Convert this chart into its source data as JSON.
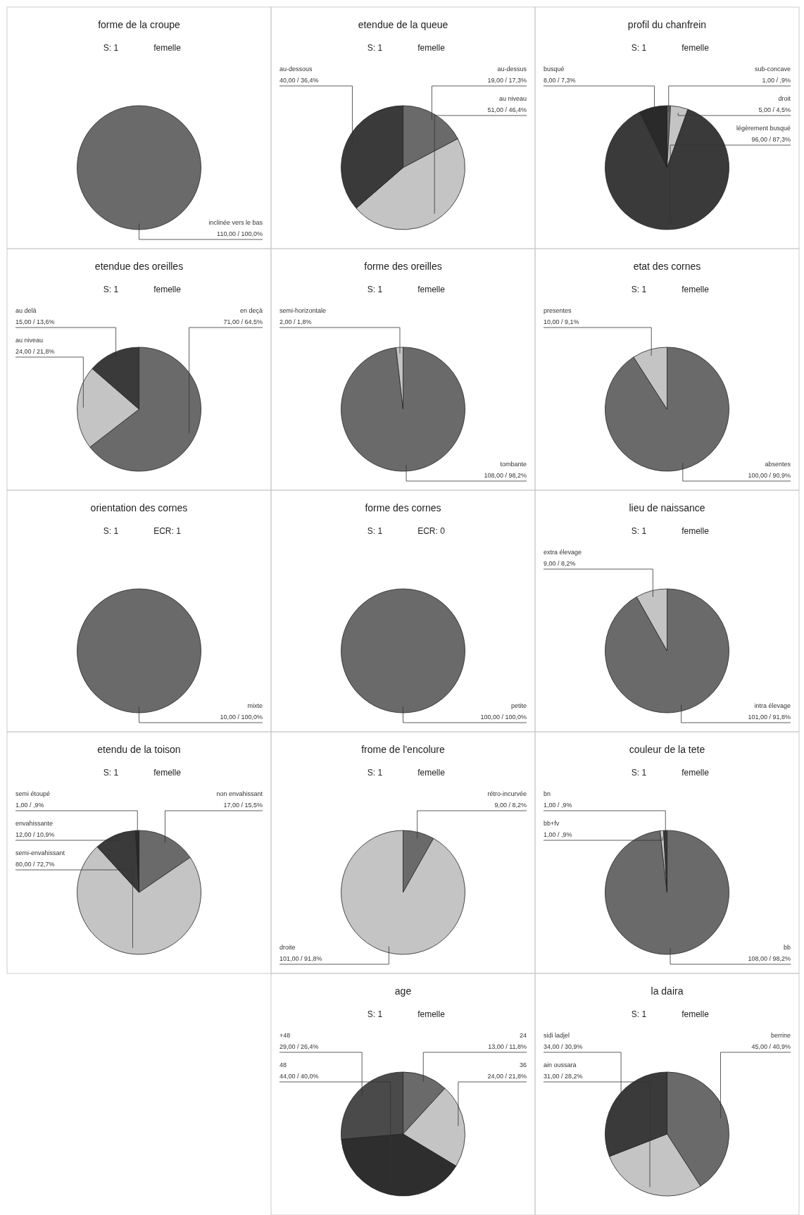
{
  "chart_data": [
    {
      "type": "pie",
      "title": "forme de la croupe",
      "subtitle": "S: 1",
      "annotations": [
        "femelle"
      ],
      "categories": [
        "inclinée vers le bas"
      ],
      "values": [
        110
      ],
      "colors": [
        "#6a6a6a"
      ],
      "value_labels": [
        "110,00 / 100,0%"
      ]
    },
    {
      "type": "pie",
      "title": "etendue de la queue",
      "subtitle": "S: 1",
      "annotations": [
        "femelle"
      ],
      "categories": [
        "au-dessus",
        "au niveau",
        "au-dessous"
      ],
      "values": [
        19,
        51,
        40
      ],
      "colors": [
        "#6a6a6a",
        "#c4c4c4",
        "#3a3a3a"
      ],
      "value_labels": [
        "19,00 / 17,3%",
        "51,00 / 46,4%",
        "40,00 / 36,4%"
      ]
    },
    {
      "type": "pie",
      "title": "profil du chanfrein",
      "subtitle": "S: 1",
      "annotations": [
        "femelle"
      ],
      "categories": [
        "sub-concave",
        "droit",
        "légèrement busqué",
        "busqué"
      ],
      "values": [
        1,
        5,
        96,
        8
      ],
      "colors": [
        "#6a6a6a",
        "#c4c4c4",
        "#3a3a3a",
        "#2a2a2a"
      ],
      "value_labels": [
        "1,00 / ,9%",
        "5,00 / 4,5%",
        "96,00 / 87,3%",
        "8,00 / 7,3%"
      ]
    },
    {
      "type": "pie",
      "title": "etendue des oreilles",
      "subtitle": "S: 1",
      "annotations": [
        "femelle"
      ],
      "categories": [
        "en deçà",
        "au niveau",
        "au delà"
      ],
      "values": [
        71,
        24,
        15
      ],
      "colors": [
        "#6a6a6a",
        "#c4c4c4",
        "#3a3a3a"
      ],
      "value_labels": [
        "71,00 / 64,5%",
        "24,00 / 21,8%",
        "15,00 / 13,6%"
      ]
    },
    {
      "type": "pie",
      "title": "forme des oreilles",
      "subtitle": "S: 1",
      "annotations": [
        "femelle"
      ],
      "categories": [
        "tombante",
        "semi-horizontale"
      ],
      "values": [
        108,
        2
      ],
      "colors": [
        "#6a6a6a",
        "#c4c4c4"
      ],
      "value_labels": [
        "108,00 / 98,2%",
        "2,00 / 1,8%"
      ]
    },
    {
      "type": "pie",
      "title": "etat des cornes",
      "subtitle": "S: 1",
      "annotations": [
        "femelle"
      ],
      "categories": [
        "absentes",
        "presentes"
      ],
      "values": [
        100,
        10
      ],
      "colors": [
        "#6a6a6a",
        "#c4c4c4"
      ],
      "value_labels": [
        "100,00 / 90,9%",
        "10,00 / 9,1%"
      ]
    },
    {
      "type": "pie",
      "title": "orientation des cornes",
      "subtitle": "S: 1",
      "annotations": [
        "ECR: 1"
      ],
      "categories": [
        "mixte"
      ],
      "values": [
        10
      ],
      "colors": [
        "#6a6a6a"
      ],
      "value_labels": [
        "10,00 / 100,0%"
      ]
    },
    {
      "type": "pie",
      "title": "forme des cornes",
      "subtitle": "S: 1",
      "annotations": [
        "ECR: 0"
      ],
      "categories": [
        "petite"
      ],
      "values": [
        100
      ],
      "colors": [
        "#6a6a6a"
      ],
      "value_labels": [
        "100,00 / 100,0%"
      ]
    },
    {
      "type": "pie",
      "title": "lieu de naissance",
      "subtitle": "S: 1",
      "annotations": [
        "femelle"
      ],
      "categories": [
        "intra élevage",
        "extra élevage"
      ],
      "values": [
        101,
        9
      ],
      "colors": [
        "#6a6a6a",
        "#c4c4c4"
      ],
      "value_labels": [
        "101,00 / 91,8%",
        "9,00 / 8,2%"
      ]
    },
    {
      "type": "pie",
      "title": "etendu de la toison",
      "subtitle": "S: 1",
      "annotations": [
        "femelle"
      ],
      "categories": [
        "non envahissant",
        "semi-envahissant",
        "envahissante",
        "semi étoupé"
      ],
      "values": [
        17,
        80,
        12,
        1
      ],
      "colors": [
        "#6a6a6a",
        "#c4c4c4",
        "#3a3a3a",
        "#2a2a2a"
      ],
      "value_labels": [
        "17,00 / 15,5%",
        "80,00 / 72,7%",
        "12,00 / 10,9%",
        "1,00 / ,9%"
      ]
    },
    {
      "type": "pie",
      "title": "frome de l'encolure",
      "subtitle": "S: 1",
      "annotations": [
        "femelle"
      ],
      "categories": [
        "rétro-incurvée",
        "droite"
      ],
      "values": [
        9,
        101
      ],
      "colors": [
        "#6a6a6a",
        "#c4c4c4"
      ],
      "value_labels": [
        "9,00 / 8,2%",
        "101,00 / 91,8%"
      ]
    },
    {
      "type": "pie",
      "title": "couleur de la tete",
      "subtitle": "S: 1",
      "annotations": [
        "femelle"
      ],
      "categories": [
        "bb",
        "bb+fv",
        "bn"
      ],
      "values": [
        108,
        1,
        1
      ],
      "colors": [
        "#6a6a6a",
        "#c4c4c4",
        "#3a3a3a"
      ],
      "value_labels": [
        "108,00 / 98,2%",
        "1,00 / ,9%",
        "1,00 / ,9%"
      ]
    },
    {
      "type": "pie",
      "title": "age",
      "subtitle": "S: 1",
      "annotations": [
        "femelle"
      ],
      "categories": [
        "24",
        "36",
        "48",
        "+48"
      ],
      "values": [
        13,
        24,
        44,
        29
      ],
      "colors": [
        "#6a6a6a",
        "#c4c4c4",
        "#2e2e2e",
        "#4a4a4a"
      ],
      "value_labels": [
        "13,00 / 11,8%",
        "24,00 / 21,8%",
        "44,00 / 40,0%",
        "29,00 / 26,4%"
      ]
    },
    {
      "type": "pie",
      "title": "la daira",
      "subtitle": "S: 1",
      "annotations": [
        "femelle"
      ],
      "categories": [
        "berrine",
        "ain oussara",
        "sidi ladjel"
      ],
      "values": [
        45,
        31,
        34
      ],
      "colors": [
        "#6a6a6a",
        "#c4c4c4",
        "#3a3a3a"
      ],
      "value_labels": [
        "45,00 / 40,9%",
        "31,00 / 28,2%",
        "34,00 / 30,9%"
      ]
    }
  ]
}
